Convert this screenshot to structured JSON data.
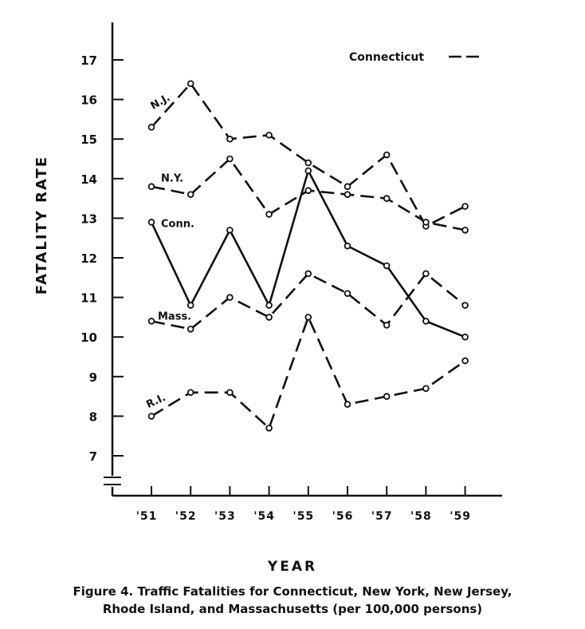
{
  "chart_data": {
    "type": "line",
    "ylabel": "FATALITY RATE",
    "xlabel": "YEAR",
    "categories": [
      "'51",
      "'52",
      "'53",
      "'54",
      "'55",
      "'56",
      "'57",
      "'58",
      "'59"
    ],
    "y_ticks": [
      7,
      8,
      9,
      10,
      11,
      12,
      13,
      14,
      15,
      16,
      17
    ],
    "ylim": [
      6.0,
      17.5
    ],
    "legend": {
      "label": "Connecticut",
      "position": "top-right"
    },
    "series": [
      {
        "name": "N.J.",
        "style": "dashed",
        "values": [
          15.3,
          16.4,
          15.0,
          15.1,
          14.4,
          13.8,
          14.6,
          12.8,
          13.3
        ]
      },
      {
        "name": "N.Y.",
        "style": "dashed",
        "values": [
          13.8,
          13.6,
          14.5,
          13.1,
          13.7,
          13.6,
          13.5,
          12.9,
          12.7
        ]
      },
      {
        "name": "Conn.",
        "style": "solid",
        "values": [
          12.9,
          10.8,
          12.7,
          10.8,
          14.2,
          12.3,
          11.8,
          10.4,
          10.0
        ]
      },
      {
        "name": "Mass.",
        "style": "dashed",
        "values": [
          10.4,
          10.2,
          11.0,
          10.5,
          11.6,
          11.1,
          10.3,
          11.6,
          10.8
        ]
      },
      {
        "name": "R.I.",
        "style": "dashed",
        "values": [
          8.0,
          8.6,
          8.6,
          7.7,
          10.5,
          8.3,
          8.5,
          8.7,
          9.4
        ]
      }
    ]
  },
  "caption": {
    "line1": "Figure  4.  Traffic Fatalities for Connecticut, New York, New Jersey,",
    "line2": "Rhode Island, and Massachusetts (per 100,000 persons)"
  }
}
